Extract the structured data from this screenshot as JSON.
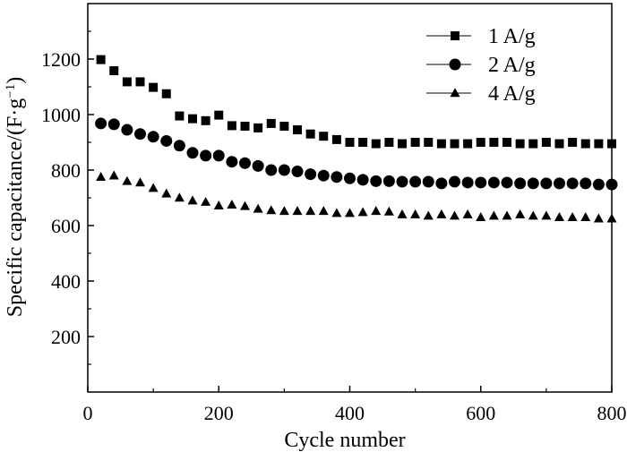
{
  "chart_data": {
    "type": "scatter",
    "xlabel": "Cycle number",
    "ylabel": {
      "main": "Specific capacitance/(F·g",
      "sup": "−1",
      "close": ")"
    },
    "xlim": [
      0,
      800
    ],
    "ylim": [
      0,
      1400
    ],
    "xticks": [
      0,
      200,
      400,
      600,
      800
    ],
    "yticks": [
      200,
      400,
      600,
      800,
      1000,
      1200
    ],
    "grid": false,
    "legend_position": "top-right",
    "series": [
      {
        "name": "1 A/g",
        "marker": "square",
        "color": "#000000",
        "x": [
          20,
          40,
          60,
          80,
          100,
          120,
          140,
          160,
          180,
          200,
          220,
          240,
          260,
          280,
          300,
          320,
          340,
          360,
          380,
          400,
          420,
          440,
          460,
          480,
          500,
          520,
          540,
          560,
          580,
          600,
          620,
          640,
          660,
          680,
          700,
          720,
          740,
          760,
          780,
          800
        ],
        "y": [
          1198,
          1158,
          1118,
          1118,
          1098,
          1075,
          995,
          985,
          978,
          998,
          960,
          958,
          952,
          968,
          958,
          945,
          930,
          922,
          910,
          900,
          900,
          895,
          900,
          895,
          900,
          900,
          895,
          895,
          895,
          900,
          900,
          900,
          895,
          895,
          900,
          895,
          900,
          895,
          895,
          895
        ]
      },
      {
        "name": "2 A/g",
        "marker": "circle",
        "color": "#000000",
        "x": [
          20,
          40,
          60,
          80,
          100,
          120,
          140,
          160,
          180,
          200,
          220,
          240,
          260,
          280,
          300,
          320,
          340,
          360,
          380,
          400,
          420,
          440,
          460,
          480,
          500,
          520,
          540,
          560,
          580,
          600,
          620,
          640,
          660,
          680,
          700,
          720,
          740,
          760,
          780,
          800
        ],
        "y": [
          968,
          965,
          945,
          930,
          920,
          905,
          888,
          862,
          852,
          852,
          830,
          825,
          815,
          800,
          800,
          795,
          785,
          780,
          775,
          770,
          765,
          760,
          760,
          758,
          758,
          758,
          752,
          758,
          755,
          755,
          755,
          755,
          752,
          752,
          752,
          752,
          752,
          752,
          748,
          748
        ]
      },
      {
        "name": "4 A/g",
        "marker": "triangle",
        "color": "#000000",
        "x": [
          20,
          40,
          60,
          80,
          100,
          120,
          140,
          160,
          180,
          200,
          220,
          240,
          260,
          280,
          300,
          320,
          340,
          360,
          380,
          400,
          420,
          440,
          460,
          480,
          500,
          520,
          540,
          560,
          580,
          600,
          620,
          640,
          660,
          680,
          700,
          720,
          740,
          760,
          780,
          800
        ],
        "y": [
          775,
          780,
          760,
          755,
          735,
          715,
          700,
          690,
          685,
          672,
          675,
          670,
          660,
          655,
          652,
          652,
          652,
          652,
          645,
          645,
          648,
          652,
          650,
          640,
          640,
          635,
          640,
          635,
          640,
          630,
          635,
          635,
          640,
          635,
          635,
          630,
          630,
          630,
          625,
          625
        ]
      }
    ]
  }
}
